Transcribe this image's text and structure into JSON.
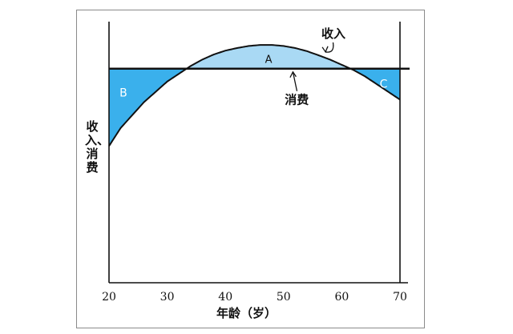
{
  "chart_data": {
    "type": "line",
    "title": "",
    "xlabel": "年龄（岁）",
    "ylabel": "收入、消费",
    "xlim": [
      20,
      70
    ],
    "x_ticks": [
      20,
      30,
      40,
      50,
      60,
      70
    ],
    "grid": false,
    "series": [
      {
        "name": "收入",
        "x": [
          20,
          22,
          24,
          26,
          28,
          30,
          32,
          34,
          36,
          38,
          40,
          42,
          44,
          46,
          48,
          50,
          52,
          54,
          56,
          58,
          60,
          62,
          64,
          66,
          68,
          70
        ],
        "y": [
          0.53,
          0.6,
          0.65,
          0.7,
          0.74,
          0.78,
          0.81,
          0.84,
          0.865,
          0.885,
          0.9,
          0.91,
          0.918,
          0.922,
          0.922,
          0.918,
          0.91,
          0.898,
          0.882,
          0.865,
          0.845,
          0.825,
          0.8,
          0.77,
          0.74,
          0.71
        ]
      },
      {
        "name": "消费",
        "x": [
          20,
          70
        ],
        "y": [
          0.83,
          0.83
        ]
      }
    ],
    "regions": [
      {
        "label": "A",
        "color": "#a9d9f4"
      },
      {
        "label": "B",
        "color": "#3ab0ec"
      },
      {
        "label": "C",
        "color": "#3ab0ec"
      }
    ],
    "annotations": [
      "收入",
      "消费"
    ]
  }
}
